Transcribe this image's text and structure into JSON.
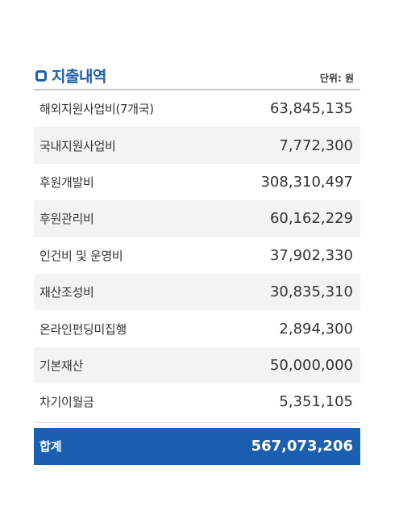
{
  "header": {
    "title": "지출내역",
    "unit": "단위: 원",
    "icon": "square-icon"
  },
  "rows": [
    {
      "label": "해외지원사업비(7개국)",
      "amount": "63,845,135"
    },
    {
      "label": "국내지원사업비",
      "amount": "7,772,300"
    },
    {
      "label": "후원개발비",
      "amount": "308,310,497"
    },
    {
      "label": "후원관리비",
      "amount": "60,162,229"
    },
    {
      "label": "인건비 및 운영비",
      "amount": "37,902,330"
    },
    {
      "label": "재산조성비",
      "amount": "30,835,310"
    },
    {
      "label": "온라인펀딩미집행",
      "amount": "2,894,300"
    },
    {
      "label": "기본재산",
      "amount": "50,000,000"
    },
    {
      "label": "차기이월금",
      "amount": "5,351,105"
    }
  ],
  "total": {
    "label": "합계",
    "amount": "567,073,206"
  },
  "colors": {
    "accent": "#1a5fb0",
    "alt_row": "#f3f3f3"
  }
}
